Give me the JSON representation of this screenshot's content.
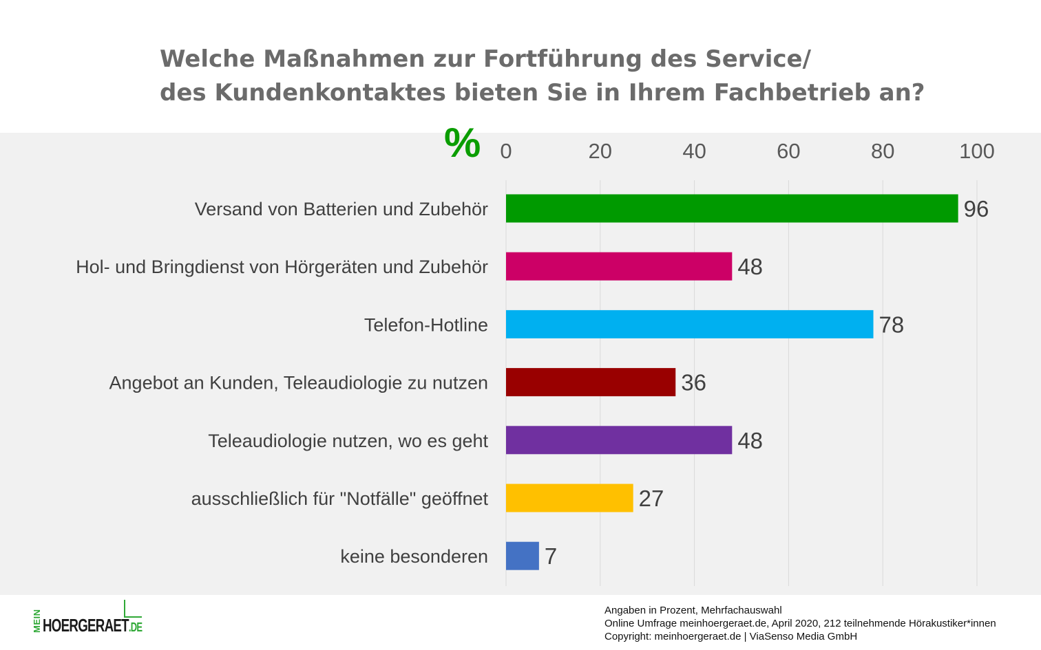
{
  "title": {
    "line1": "Welche Maßnahmen zur Fortführung des Service/",
    "line2": "des Kundenkontaktes bieten Sie in Ihrem Fachbetrieb an?"
  },
  "unit_symbol": "%",
  "colors": {
    "title": "#6b6b6b",
    "panel_background": "#f1f1f1",
    "percent_sign": "#0a9d00",
    "grid": "#d9d9d9"
  },
  "chart_data": {
    "type": "bar",
    "orientation": "horizontal",
    "axis_position": "top",
    "xlim": [
      0,
      100
    ],
    "ticks": [
      0,
      20,
      40,
      60,
      80,
      100
    ],
    "grid": true,
    "categories": [
      "Versand von Batterien und Zubehör",
      "Hol- und Bringdienst von Hörgeräten und Zubehör",
      "Telefon-Hotline",
      "Angebot an Kunden, Teleaudiologie zu nutzen",
      "Teleaudiologie nutzen, wo es geht",
      "ausschließlich für \"Notfälle\" geöffnet",
      "keine besonderen"
    ],
    "values": [
      96,
      48,
      78,
      36,
      48,
      27,
      7
    ],
    "bar_colors": [
      "#009a00",
      "#cc0066",
      "#00b0f0",
      "#990000",
      "#7030a0",
      "#ffc000",
      "#4472c4"
    ]
  },
  "footer": {
    "note1": "Angaben in Prozent,  Mehrfachauswahl",
    "note2": "Online Umfrage meinhoergeraet.de, April 2020, 212 teilnehmende  Hörakustiker*innen",
    "note3": "Copyright: meinhoergeraet.de | ViaSenso Media GmbH"
  },
  "logo": {
    "prefix": "MEIN",
    "name": "HOERGERAET",
    "tld": ".DE"
  }
}
